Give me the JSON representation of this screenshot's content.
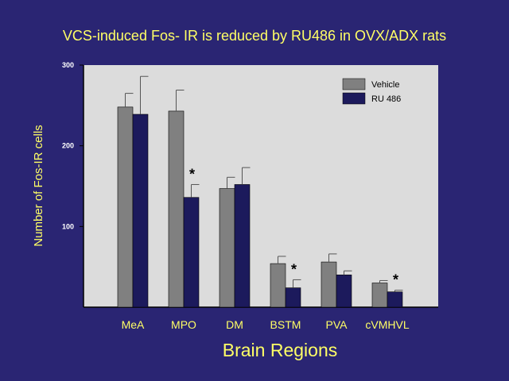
{
  "title": "VCS-induced Fos- IR is reduced by RU486 in OVX/ADX rats",
  "chart_data": {
    "type": "bar",
    "title": "VCS-induced Fos- IR is reduced by RU486 in OVX/ADX rats",
    "xlabel": "Brain Regions",
    "ylabel": "Number of Fos-IR cells",
    "ylim": [
      0,
      300
    ],
    "yticks": [
      100,
      200,
      300
    ],
    "categories": [
      "MeA",
      "MPO",
      "DM",
      "BSTM",
      "PVA",
      "cVMHVL"
    ],
    "series": [
      {
        "name": "Vehicle",
        "color": "#808080",
        "values": [
          248,
          243,
          147,
          54,
          56,
          30
        ],
        "errors": [
          17,
          26,
          14,
          9,
          10,
          3
        ]
      },
      {
        "name": "RU 486",
        "color": "#1c1a5c",
        "values": [
          239,
          136,
          152,
          24,
          40,
          19
        ],
        "errors": [
          47,
          16,
          21,
          10,
          5,
          2
        ]
      }
    ],
    "significance": [
      {
        "category": "MPO",
        "series": "RU 486",
        "label": "*"
      },
      {
        "category": "BSTM",
        "series": "RU 486",
        "label": "*"
      },
      {
        "category": "cVMHVL",
        "series": "RU 486",
        "label": "*"
      }
    ],
    "legend_position": "top-right",
    "plot_background": "#dcdcdc",
    "grid": false
  }
}
